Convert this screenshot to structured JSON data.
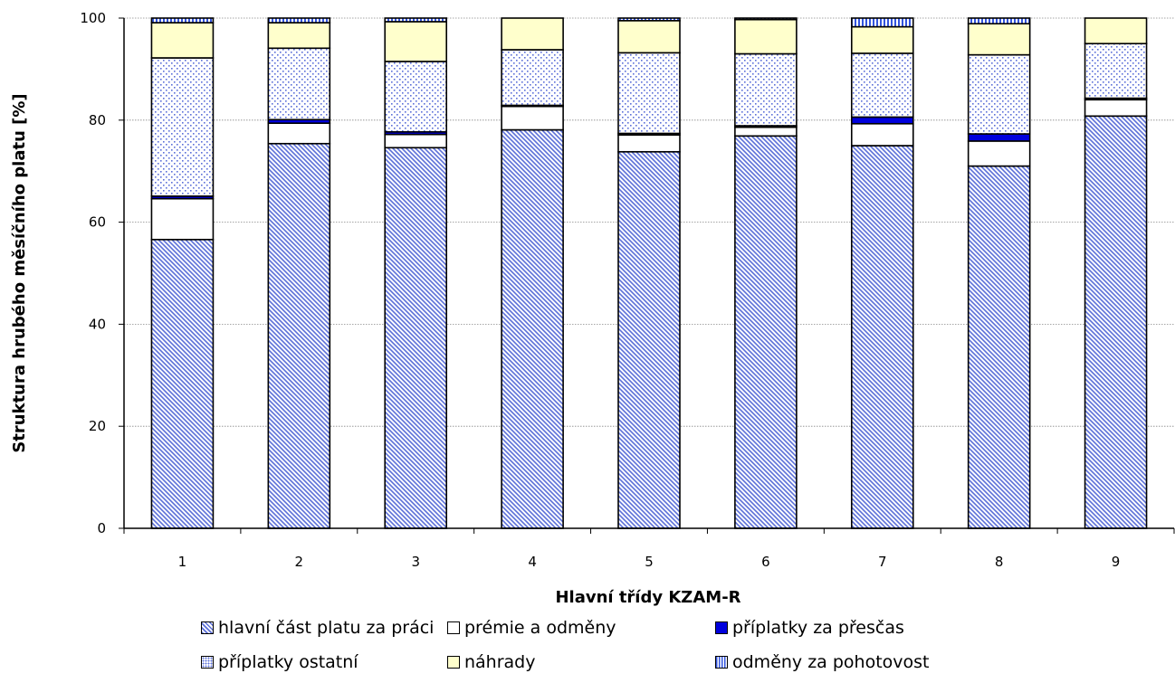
{
  "chart_data": {
    "type": "bar",
    "stacked": true,
    "xlabel": "Hlavní třídy KZAM-R",
    "ylabel": "Struktura hrubého měsíčního platu [%]",
    "categories": [
      "1",
      "2",
      "3",
      "4",
      "5",
      "6",
      "7",
      "8",
      "9"
    ],
    "ylim": [
      0,
      100
    ],
    "yticks": [
      "0",
      "20",
      "40",
      "60",
      "80",
      "100"
    ],
    "grid": true,
    "legend_position": "bottom",
    "series": [
      {
        "name": "hlavní část platu za práci",
        "pattern": "diagonal-hatch",
        "color": "#5b6fd8",
        "values": [
          56.6,
          75.4,
          74.6,
          78.1,
          73.8,
          76.9,
          75.0,
          71.0,
          80.8
        ]
      },
      {
        "name": "prémie a odměny",
        "pattern": "solid",
        "color": "#ffffff",
        "values": [
          8.0,
          4.0,
          2.6,
          4.6,
          3.3,
          1.7,
          4.3,
          4.9,
          3.2
        ]
      },
      {
        "name": "příplatky  za přesčas",
        "pattern": "solid",
        "color": "#0000dd",
        "values": [
          0.5,
          0.7,
          0.5,
          0.2,
          0.3,
          0.3,
          1.3,
          1.4,
          0.3
        ]
      },
      {
        "name": "příplatky ostatní",
        "pattern": "dots",
        "color": "#5b6fd8",
        "values": [
          27.1,
          14.0,
          13.8,
          10.9,
          15.8,
          14.1,
          12.5,
          15.5,
          10.7
        ]
      },
      {
        "name": "náhrady",
        "pattern": "solid",
        "color": "#ffffcc",
        "values": [
          6.9,
          5.0,
          7.8,
          6.2,
          6.3,
          6.7,
          5.2,
          6.1,
          5.0
        ]
      },
      {
        "name": "odměny za pohotovost",
        "pattern": "vertical-lines",
        "color": "#3355dd",
        "values": [
          0.9,
          0.9,
          0.7,
          0.0,
          0.5,
          0.3,
          1.7,
          1.1,
          0.0
        ]
      }
    ]
  }
}
